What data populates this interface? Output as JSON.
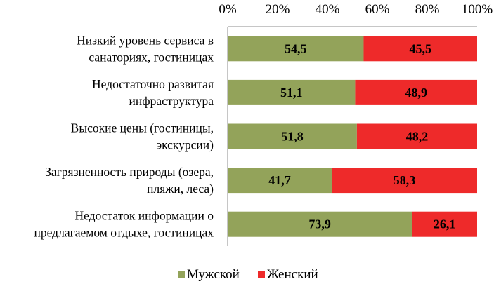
{
  "chart_data": {
    "type": "bar",
    "orientation": "horizontal",
    "stacked": "percent",
    "title": "",
    "xlabel": "",
    "ylabel": "",
    "xlim": [
      0,
      100
    ],
    "x_ticks": [
      "0%",
      "20%",
      "40%",
      "60%",
      "80%",
      "100%"
    ],
    "x_axis_position": "top",
    "grid": false,
    "legend_position": "bottom",
    "categories": [
      [
        "Низкий уровень сервиса в",
        "санаториях, гостиницах"
      ],
      [
        "Недостаточно развитая",
        "инфраструктура"
      ],
      [
        "Высокие цены (гостиницы,",
        "экскурсии)"
      ],
      [
        "Загрязненность природы (озера,",
        "пляжи, леса)"
      ],
      [
        "Недостаток информации о",
        "предлагаемом отдыхе, гостиницах"
      ]
    ],
    "series": [
      {
        "name": "Мужской",
        "color": "#93a35a",
        "values": [
          54.5,
          51.1,
          51.8,
          41.7,
          73.9
        ],
        "labels": [
          "54,5",
          "51,1",
          "51,8",
          "41,7",
          "73,9"
        ]
      },
      {
        "name": "Женский",
        "color": "#ee2a2a",
        "values": [
          45.5,
          48.9,
          48.2,
          58.3,
          26.1
        ],
        "labels": [
          "45,5",
          "48,9",
          "48,2",
          "58,3",
          "26,1"
        ]
      }
    ]
  }
}
